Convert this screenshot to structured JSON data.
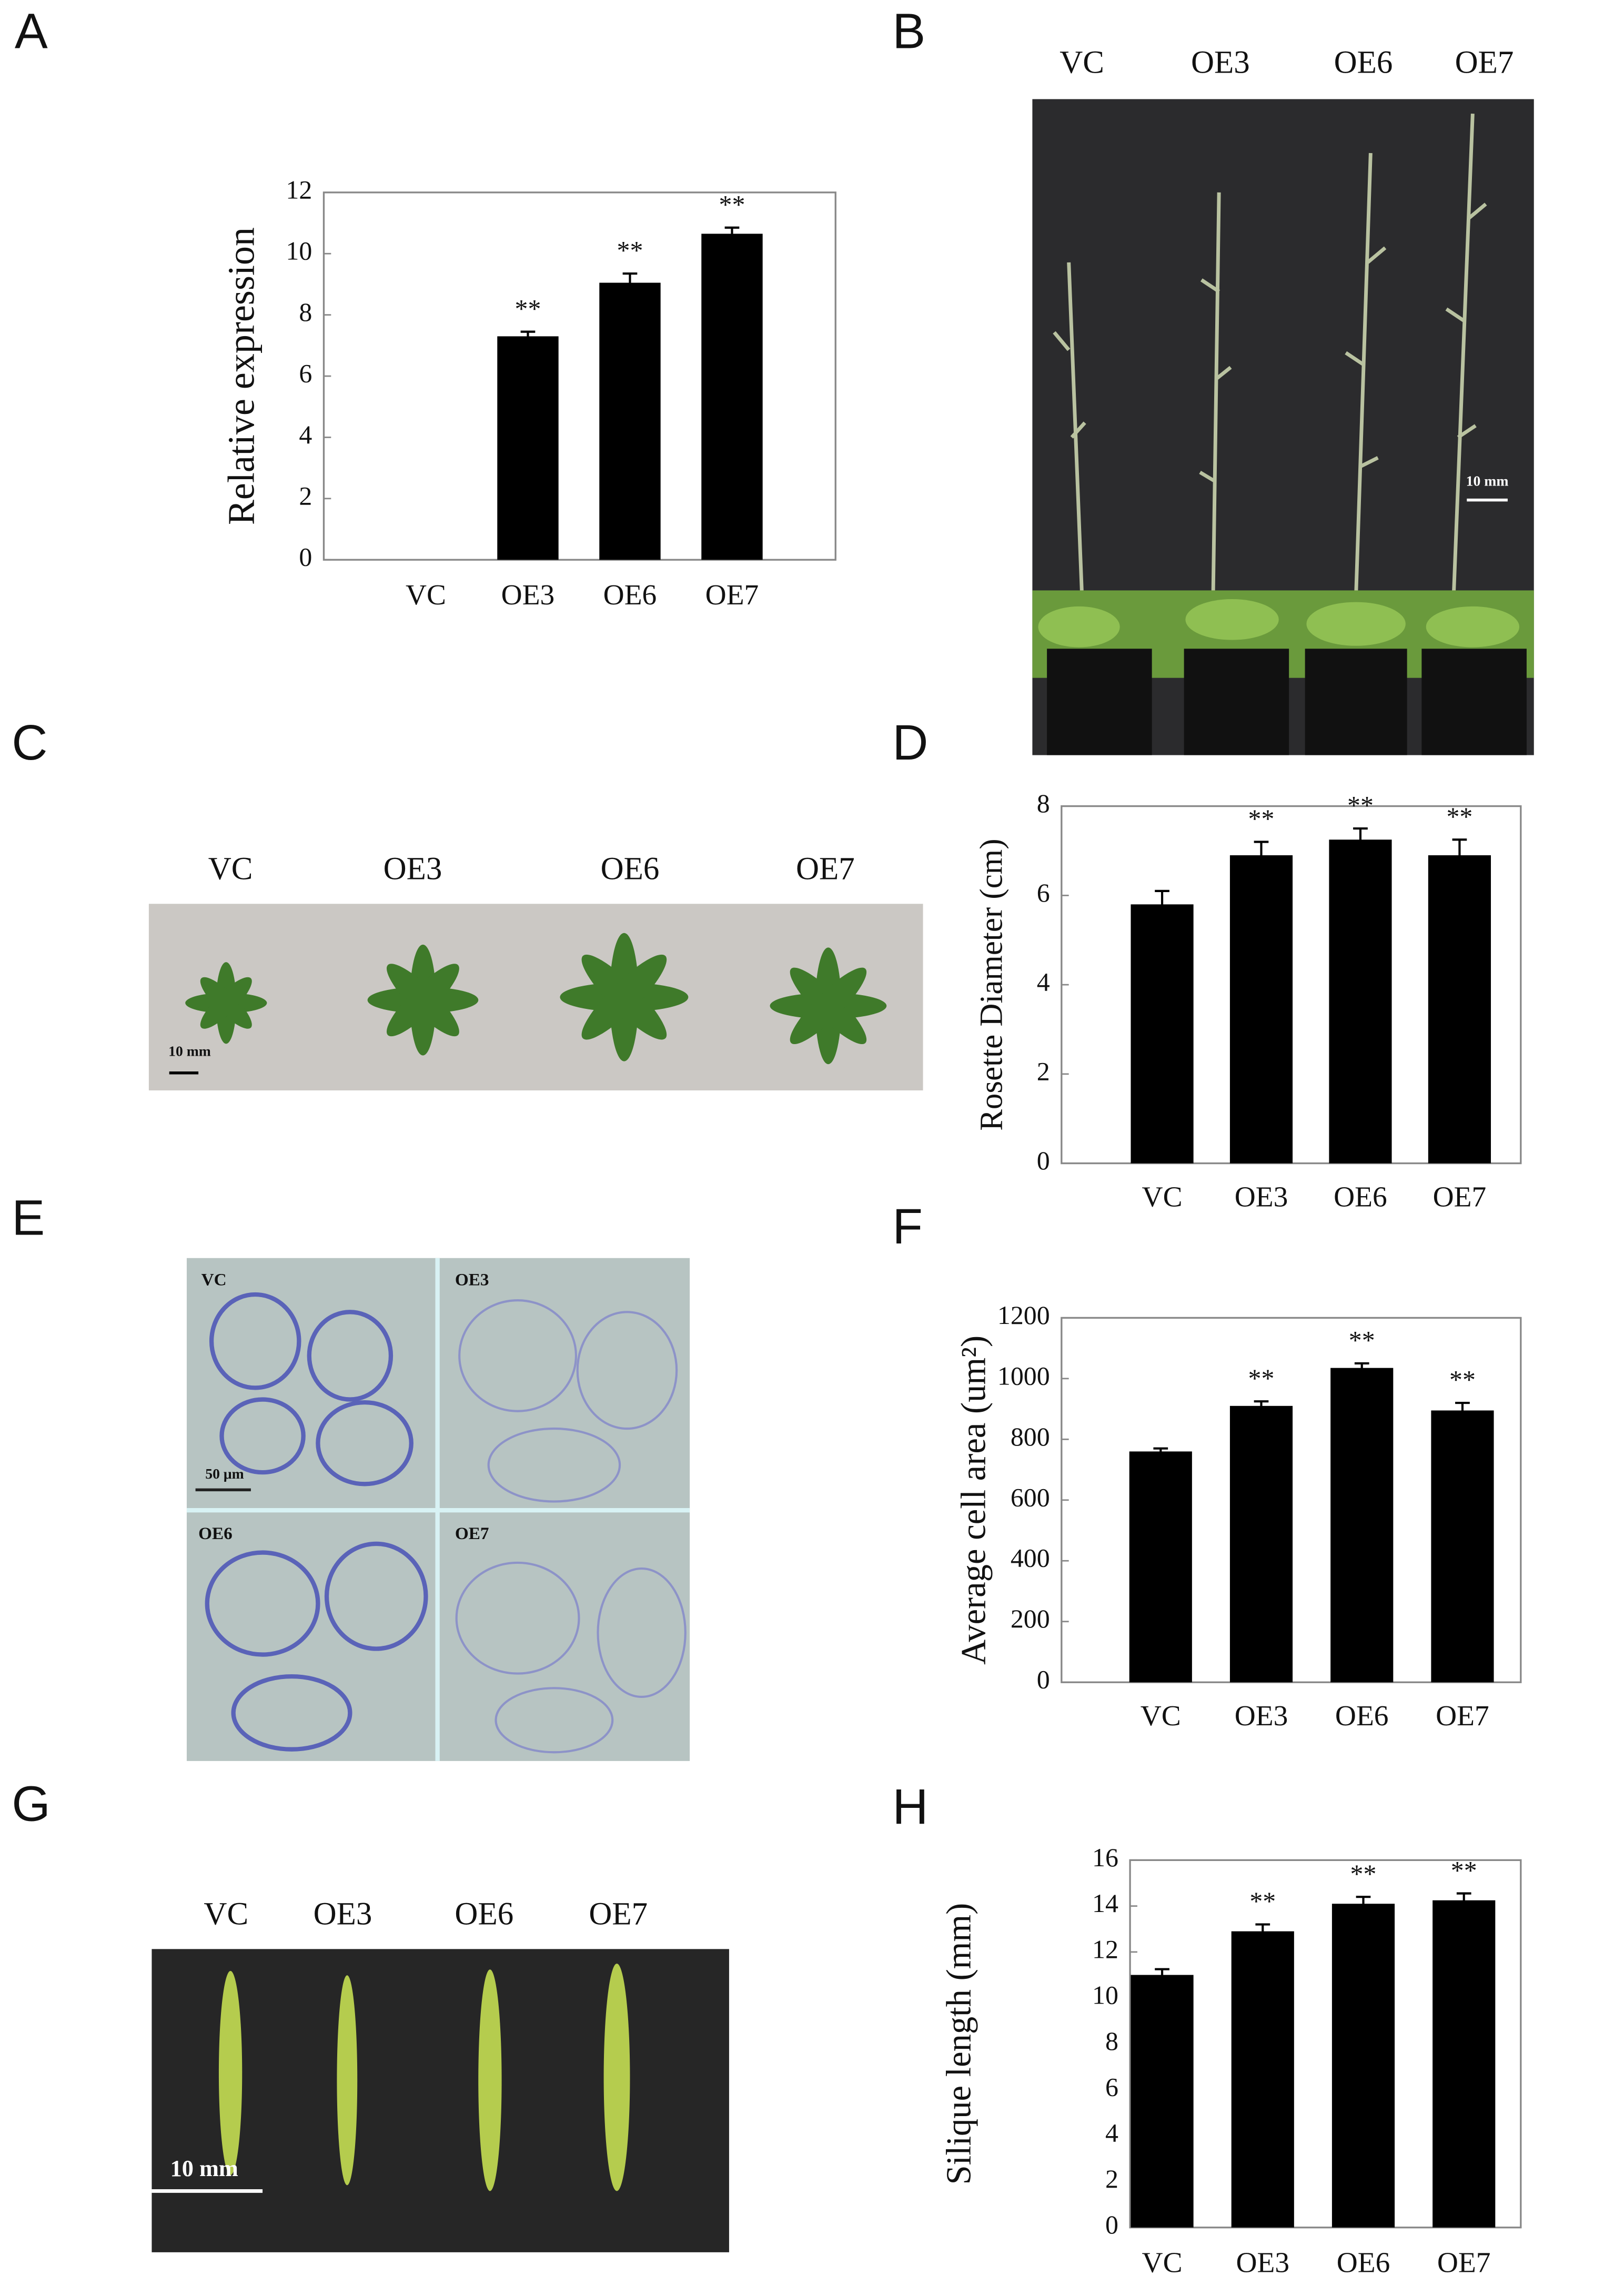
{
  "panel_labels": [
    "A",
    "B",
    "C",
    "D",
    "E",
    "F",
    "G",
    "H"
  ],
  "photos": {
    "B": {
      "labels": [
        "VC",
        "OE3",
        "OE6",
        "OE7"
      ],
      "scale_bar": "10 mm"
    },
    "C": {
      "labels": [
        "VC",
        "OE3",
        "OE6",
        "OE7"
      ],
      "scale_bar": "10 mm"
    },
    "E": {
      "labels": [
        "VC",
        "OE3",
        "OE6",
        "OE7"
      ],
      "scale_bar": "50 μm"
    },
    "G": {
      "labels": [
        "VC",
        "OE3",
        "OE6",
        "OE7"
      ],
      "scale_bar": "10 mm"
    }
  },
  "chart_data": [
    {
      "type": "bar",
      "y_label": "Relative expression",
      "categories": [
        "VC",
        "OE3",
        "OE6",
        "OE7"
      ],
      "values": [
        0,
        7.3,
        9.05,
        10.65
      ],
      "errors": [
        0,
        0.15,
        0.3,
        0.2
      ],
      "significance": [
        null,
        "**",
        "**",
        "**"
      ],
      "color": "#000000",
      "ylim": [
        0,
        12
      ],
      "yticks": [
        0,
        2,
        4,
        6,
        8,
        10,
        12
      ]
    },
    {
      "type": "bar",
      "y_label": "Rosette Diameter (cm)",
      "categories": [
        "VC",
        "OE3",
        "OE6",
        "OE7"
      ],
      "values": [
        5.8,
        6.9,
        7.25,
        6.9
      ],
      "errors": [
        0.3,
        0.3,
        0.25,
        0.35
      ],
      "significance": [
        null,
        "**",
        "**",
        "**"
      ],
      "color": "#000000",
      "ylim": [
        0,
        8
      ],
      "yticks": [
        0,
        2,
        4,
        6,
        8
      ]
    },
    {
      "type": "bar",
      "y_label": "Average cell area (um²)",
      "categories": [
        "VC",
        "OE3",
        "OE6",
        "OE7"
      ],
      "values": [
        760,
        910,
        1035,
        895
      ],
      "errors": [
        10,
        15,
        15,
        25
      ],
      "significance": [
        null,
        "**",
        "**",
        "**"
      ],
      "color": "#000000",
      "ylim": [
        0,
        1200
      ],
      "yticks": [
        0,
        200,
        400,
        600,
        800,
        1000,
        1200
      ]
    },
    {
      "type": "bar",
      "y_label": "Silique length (mm)",
      "categories": [
        "VC",
        "OE3",
        "OE6",
        "OE7"
      ],
      "values": [
        11,
        12.9,
        14.1,
        14.25
      ],
      "errors": [
        0.25,
        0.3,
        0.3,
        0.3
      ],
      "significance": [
        null,
        "**",
        "**",
        "**"
      ],
      "color": "#000000",
      "ylim": [
        0,
        16
      ],
      "yticks": [
        0,
        2,
        4,
        6,
        8,
        10,
        12,
        14,
        16
      ]
    }
  ]
}
